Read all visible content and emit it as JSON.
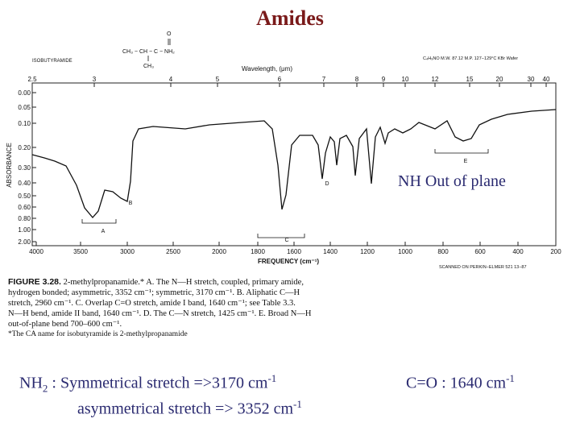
{
  "title": "Amides",
  "structure": {
    "carbonyl": "O",
    "formula": "CH₃ − CH − C − NH₂",
    "methyl": "CH₃",
    "name": "ISOBUTYRAMIDE",
    "info": "C₄H₉NO   M.W. 87.12   M.P. 127−129°C   KBr Wafer"
  },
  "spectrum": {
    "wavelength_label": "Wavelength, (μm)",
    "wavelength_ticks": [
      "2.5",
      "3",
      "4",
      "5",
      "6",
      "7",
      "8",
      "9",
      "10",
      "12",
      "15",
      "20",
      "30",
      "40"
    ],
    "absorbance_label": "ABSORBANCE",
    "absorbance_ticks": [
      "0.00",
      "0.05",
      "0.10",
      "0.20",
      "0.30",
      "0.40",
      "0.50",
      "0.60",
      "0.80",
      "1.00",
      "2.00"
    ],
    "frequency_label": "FREQUENCY (cm⁻¹)",
    "frequency_ticks": [
      "4000",
      "3500",
      "3000",
      "2500",
      "2000",
      "1800",
      "1600",
      "1400",
      "1200",
      "1000",
      "800",
      "600",
      "400",
      "200"
    ],
    "peaks": [
      "A",
      "B",
      "C",
      "D",
      "E"
    ],
    "scan_note": "SCANNED ON PERKIN−ELMER 521   13−87"
  },
  "annotation": "NH Out of plane",
  "caption": {
    "label": "FIGURE 3.28.",
    "lines": [
      "2-methylpropanamide.* A. The N—H stretch, coupled, primary amide,",
      "hydrogen bonded; asymmetric, 3352 cm⁻¹; symmetric, 3170 cm⁻¹. B. Aliphatic C—H",
      "stretch, 2960 cm⁻¹. C. Overlap C=O stretch, amide I band, 1640 cm⁻¹; see Table 3.3.",
      "N—H bend, amide II band, 1640 cm⁻¹. D. The C—N stretch, 1425 cm⁻¹. E. Broad N—H",
      "out-of-plane bend 700–600 cm⁻¹.",
      "*The CA name for isobutyramide is 2-methylpropanamide"
    ]
  },
  "notes": {
    "nh2": {
      "prefix": "NH",
      "sub": "2",
      "line1": " : Symmetrical stretch =>3170 cm",
      "sup1": "-1",
      "line2": "asymmetrical stretch => 3352 cm",
      "sup2": "-1"
    },
    "co": {
      "text": "C=O : 1640 cm",
      "sup": "-1"
    }
  }
}
